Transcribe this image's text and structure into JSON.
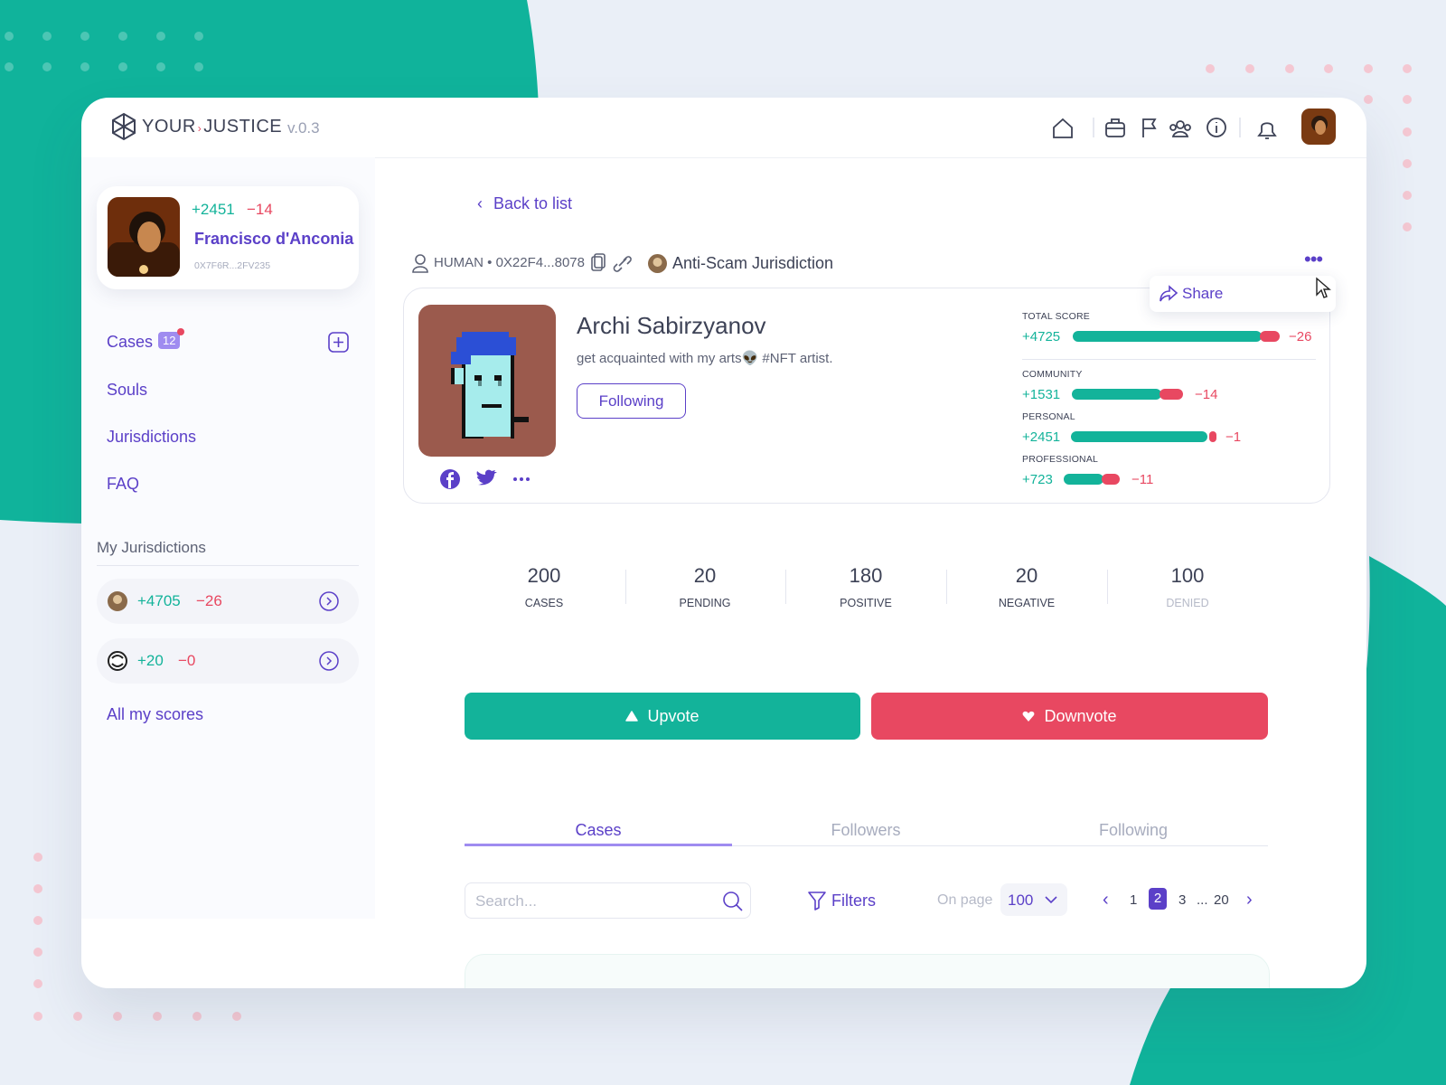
{
  "header": {
    "logo_left": "YOUR",
    "logo_right": "JUSTICE",
    "version": "v.0.3"
  },
  "sidebar": {
    "user": {
      "plus": "+2451",
      "minus": "−14",
      "name": "Francisco d'Anconia",
      "address": "0X7F6R...2FV235"
    },
    "nav": [
      {
        "label": "Cases",
        "badge": "12"
      },
      {
        "label": "Souls"
      },
      {
        "label": "Jurisdictions"
      },
      {
        "label": "FAQ"
      }
    ],
    "my_jurisdictions_title": "My Jurisdictions",
    "jurisdictions": [
      {
        "plus": "+4705",
        "minus": "−26"
      },
      {
        "plus": "+20",
        "minus": "−0"
      }
    ],
    "all_scores": "All my scores"
  },
  "main": {
    "back": "Back to list",
    "meta": "HUMAN • 0X22F4...8078",
    "jurisdiction": "Anti-Scam Jurisdiction",
    "share": "Share",
    "profile": {
      "name": "Archi Sabirzyanov",
      "bio": "get acquainted with my arts👽 #NFT artist.",
      "follow_button": "Following"
    },
    "scores": [
      {
        "label": "TOTAL SCORE",
        "plus": "+4725",
        "minus": "−26"
      },
      {
        "label": "COMMUNITY",
        "plus": "+1531",
        "minus": "−14"
      },
      {
        "label": "PERSONAL",
        "plus": "+2451",
        "minus": "−1"
      },
      {
        "label": "PROFESSIONAL",
        "plus": "+723",
        "minus": "−11"
      }
    ],
    "stats": [
      {
        "value": 200,
        "label": "CASES"
      },
      {
        "value": 20,
        "label": "PENDING"
      },
      {
        "value": 180,
        "label": "POSITIVE"
      },
      {
        "value": 20,
        "label": "NEGATIVE"
      },
      {
        "value": 100,
        "label": "DENIED"
      }
    ],
    "upvote": "Upvote",
    "downvote": "Downvote",
    "tabs": [
      "Cases",
      "Followers",
      "Following"
    ],
    "search_placeholder": "Search...",
    "filters": "Filters",
    "on_page_label": "On page",
    "on_page_value": 100,
    "pages": [
      1,
      2,
      3,
      "...",
      20
    ]
  }
}
